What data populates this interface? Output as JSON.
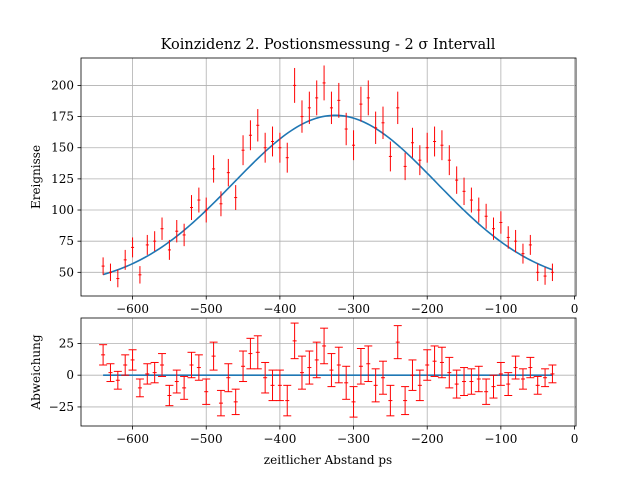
{
  "chart_data": [
    {
      "type": "scatter",
      "title": "Koinzidenz 2. Postionsmessung - 2 σ Intervall",
      "xlabel": "",
      "ylabel": "Ereignisse",
      "xlim": [
        -670,
        2
      ],
      "ylim": [
        31,
        222
      ],
      "xticks": [
        -600,
        -500,
        -400,
        -300,
        -200,
        -100,
        0
      ],
      "xtick_labels": [
        "−600",
        "−500",
        "−400",
        "−300",
        "−200",
        "−100",
        "0"
      ],
      "yticks": [
        50,
        75,
        100,
        125,
        150,
        175,
        200
      ],
      "ytick_labels": [
        "50",
        "75",
        "100",
        "125",
        "150",
        "175",
        "200"
      ],
      "grid": true,
      "colors": {
        "data": "#ff0000",
        "fit": "#1f77b4",
        "grid": "#b0b0b0"
      },
      "series": [
        {
          "kind": "errorbar",
          "x": [
            -640,
            -630,
            -620,
            -610,
            -600,
            -590,
            -580,
            -570,
            -560,
            -550,
            -540,
            -530,
            -520,
            -510,
            -500,
            -490,
            -480,
            -470,
            -460,
            -450,
            -440,
            -430,
            -420,
            -410,
            -400,
            -390,
            -380,
            -370,
            -360,
            -350,
            -340,
            -330,
            -320,
            -310,
            -300,
            -290,
            -280,
            -270,
            -260,
            -250,
            -240,
            -230,
            -220,
            -210,
            -200,
            -190,
            -180,
            -170,
            -160,
            -150,
            -140,
            -130,
            -120,
            -110,
            -100,
            -90,
            -80,
            -70,
            -60,
            -50,
            -40,
            -30
          ],
          "y": [
            55,
            50,
            45,
            60,
            70,
            48,
            72,
            75,
            85,
            68,
            83,
            80,
            102,
            108,
            100,
            133,
            105,
            130,
            110,
            148,
            160,
            168,
            150,
            155,
            150,
            142,
            200,
            175,
            182,
            190,
            202,
            182,
            188,
            165,
            152,
            185,
            190,
            166,
            170,
            143,
            182,
            135,
            154,
            140,
            150,
            155,
            152,
            140,
            124,
            115,
            108,
            100,
            95,
            85,
            90,
            78,
            75,
            65,
            72,
            50,
            47,
            50
          ],
          "yerr": [
            7,
            7,
            7,
            8,
            8,
            7,
            8,
            8,
            9,
            8,
            9,
            9,
            10,
            10,
            10,
            11,
            10,
            11,
            10,
            12,
            12,
            13,
            12,
            12,
            12,
            12,
            14,
            13,
            13,
            14,
            14,
            13,
            14,
            13,
            12,
            14,
            14,
            13,
            13,
            12,
            13,
            11,
            12,
            12,
            12,
            12,
            12,
            12,
            11,
            11,
            10,
            10,
            10,
            9,
            9,
            9,
            9,
            8,
            8,
            7,
            7,
            7
          ]
        },
        {
          "kind": "line",
          "label": "",
          "gaussian": {
            "amplitude": 138,
            "mean": -325,
            "sigma": 138,
            "offset": 38
          },
          "x_range": [
            -640,
            -30
          ]
        }
      ]
    },
    {
      "type": "scatter",
      "title": "",
      "xlabel": "zeitlicher Abstand ps",
      "ylabel": "Abweichung",
      "xlim": [
        -670,
        2
      ],
      "ylim": [
        -40,
        45
      ],
      "xticks": [
        -600,
        -500,
        -400,
        -300,
        -200,
        -100,
        0
      ],
      "xtick_labels": [
        "−600",
        "−500",
        "−400",
        "−300",
        "−200",
        "−100",
        "0"
      ],
      "yticks": [
        -25,
        0,
        25
      ],
      "ytick_labels": [
        "−25",
        "0",
        "25"
      ],
      "grid": true,
      "colors": {
        "data": "#ff0000",
        "fit": "#1f77b4",
        "grid": "#b0b0b0"
      },
      "series": [
        {
          "kind": "errorbar",
          "x": [
            -640,
            -630,
            -620,
            -610,
            -600,
            -590,
            -580,
            -570,
            -560,
            -550,
            -540,
            -530,
            -520,
            -510,
            -500,
            -490,
            -480,
            -470,
            -460,
            -450,
            -440,
            -430,
            -420,
            -410,
            -400,
            -390,
            -380,
            -370,
            -360,
            -350,
            -340,
            -330,
            -320,
            -310,
            -300,
            -290,
            -280,
            -270,
            -260,
            -250,
            -240,
            -230,
            -220,
            -210,
            -200,
            -190,
            -180,
            -170,
            -160,
            -150,
            -140,
            -130,
            -120,
            -110,
            -100,
            -90,
            -80,
            -70,
            -60,
            -50,
            -40,
            -30
          ],
          "y": [
            16,
            2,
            -4,
            8,
            12,
            -10,
            1,
            2,
            8,
            -16,
            -5,
            -10,
            8,
            6,
            -13,
            15,
            -22,
            -2,
            -21,
            7,
            17,
            18,
            -2,
            -8,
            -8,
            -20,
            27,
            2,
            6,
            12,
            23,
            4,
            8,
            -6,
            -21,
            7,
            9,
            -8,
            -2,
            -20,
            26,
            -20,
            0,
            -8,
            8,
            11,
            10,
            2,
            -7,
            -5,
            -5,
            -3,
            -13,
            -9,
            1,
            -7,
            6,
            -3,
            6,
            -8,
            -2,
            1
          ],
          "yerr": [
            8,
            7,
            7,
            8,
            8,
            7,
            8,
            8,
            9,
            8,
            9,
            9,
            10,
            10,
            10,
            11,
            10,
            11,
            10,
            12,
            12,
            13,
            12,
            12,
            12,
            12,
            14,
            13,
            13,
            14,
            14,
            13,
            14,
            13,
            12,
            14,
            14,
            13,
            13,
            12,
            13,
            11,
            12,
            12,
            12,
            12,
            12,
            12,
            11,
            11,
            10,
            10,
            10,
            9,
            9,
            9,
            9,
            8,
            8,
            7,
            7,
            7
          ]
        },
        {
          "kind": "line",
          "label": "",
          "constant": 0,
          "x_range": [
            -640,
            -30
          ]
        }
      ]
    }
  ]
}
